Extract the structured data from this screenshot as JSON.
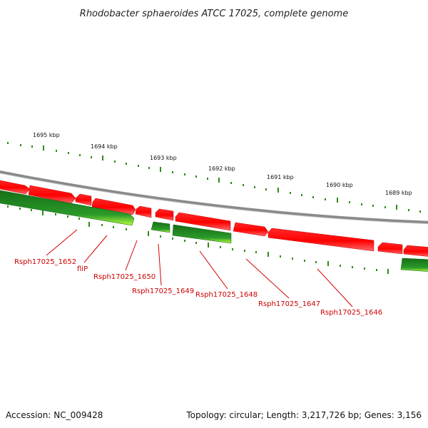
{
  "title": "Rhodobacter sphaeroides ATCC 17025, complete genome",
  "footer": {
    "accession": "Accession: NC_009428",
    "topology": "Topology: circular; Length: 3,217,726 bp; Genes: 3,156"
  },
  "scale_labels": [
    "1695 kbp",
    "1694 kbp",
    "1693 kbp",
    "1692 kbp",
    "1691 kbp",
    "1690 kbp",
    "1689 kbp"
  ],
  "gene_labels": [
    "Rsph17025_1652",
    "fliP",
    "Rsph17025_1650",
    "Rsph17025_1649",
    "Rsph17025_1648",
    "Rsph17025_1647",
    "Rsph17025_1646"
  ],
  "colors": {
    "backbone": "#8a8a8a",
    "forward_gene": "#ff0000",
    "reverse_gene": "#1e8c1e",
    "reverse_highlight": "#b6ff3c",
    "tick_forward": "#3a8a1a",
    "label": "#cc0000"
  }
}
